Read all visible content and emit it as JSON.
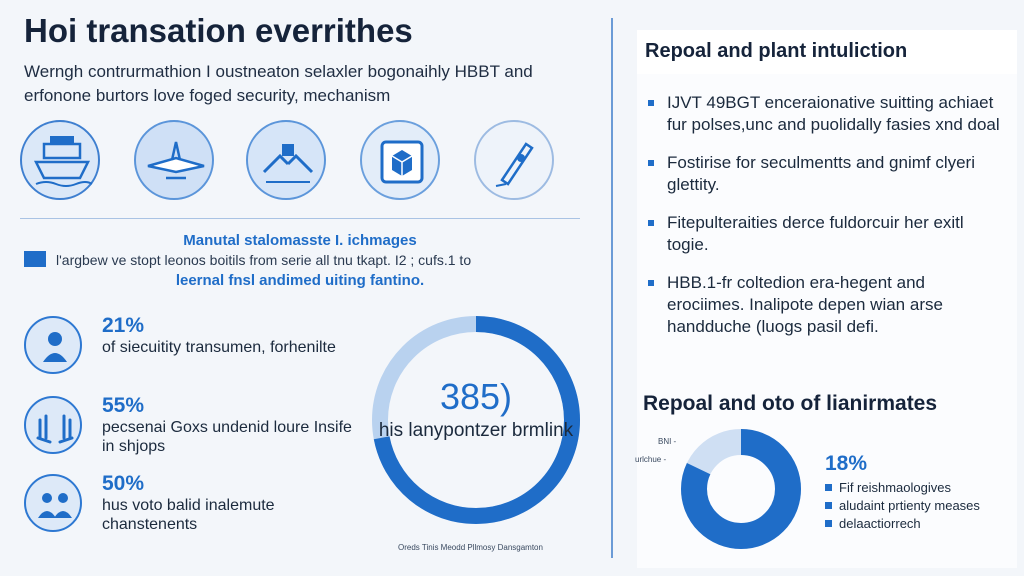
{
  "header": {
    "title": "Hoi transation everrithes",
    "subtitle": "Werngh contrurmathion I oustneaton selaxler bogonaihly HBBT and erfonone burtors love foged security, mechanism"
  },
  "icons": [
    "ship-icon",
    "plane-icon",
    "hands-icon",
    "cube-icon",
    "pen-icon"
  ],
  "manual": {
    "title": "Manutal stalomasste I. ichmages",
    "line": "l'argbew ve stopt leonos boitils from serie all tnu tkapt. I2 ; cufs.1 to",
    "subtitle": "leernal fnsl andimed uiting fantino."
  },
  "stats": [
    {
      "pct": "21%",
      "text": "of siecuitity transumen, forhenilte",
      "icon": "person-icon"
    },
    {
      "pct": "55%",
      "text": "pecsenai Goxs undenid loure Insife in shjops",
      "icon": "hands-icon"
    },
    {
      "pct": "50%",
      "text": "hus voto balid inalemute chanstenents",
      "icon": "people-icon"
    }
  ],
  "ring": {
    "number": "385)",
    "label": "his lanypontzer brmlink",
    "fraction": 0.72
  },
  "footnote": "Oreds Tinis Meodd Pllmosy Dansgamton",
  "right": {
    "card_title": "Repoal and plant intuliction",
    "bullets": [
      "IJVT 49BGT enceraionative suitting achiaet fur polses,unc and puolidally fasies xnd doal",
      "Fostirise for seculmentts and gnimf clyeri glettity.",
      "Fitepulteraities derce fuldorcuir her exitl togie.",
      "HBB.1-fr coltedion era-hegent and erociimes. Inalipote depen wian arse handduche (luogs pasil defi."
    ],
    "section_title": "Repoal and oto of lianirmates",
    "mini_labels": [
      "BNI -",
      "urlchue -"
    ],
    "pct": "18%",
    "legend": [
      "Fif reishmaologives",
      "aludaint prtienty meases",
      "delaactiorrech"
    ],
    "donut_fraction": 0.82
  },
  "colors": {
    "accent": "#1f6dc8",
    "light": "#b9d2ef",
    "background": "#f3f6fa"
  }
}
